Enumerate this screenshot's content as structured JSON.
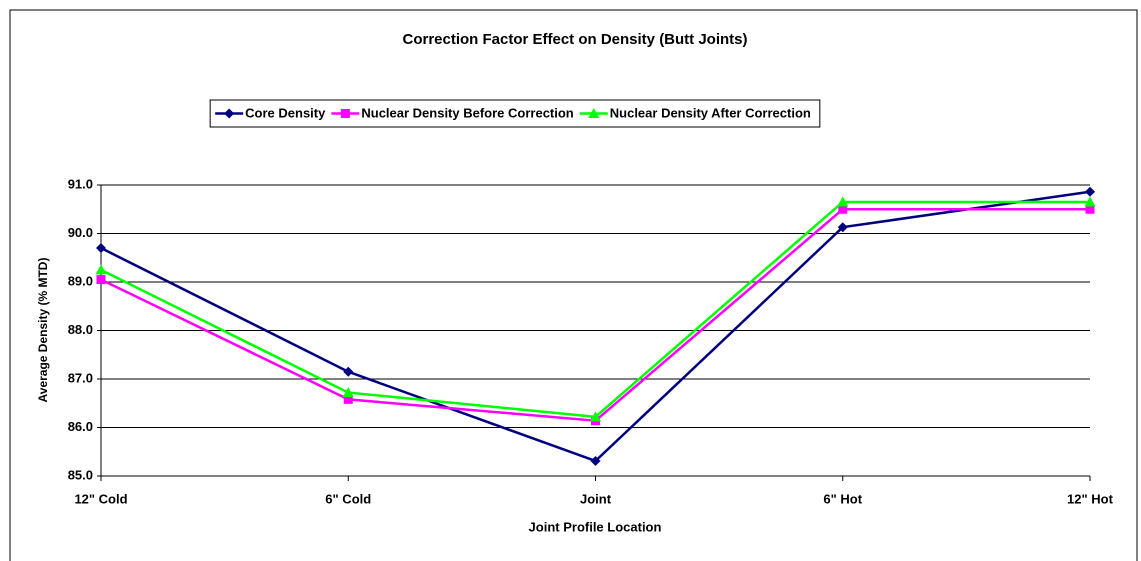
{
  "chart_data": {
    "type": "line",
    "title": "Correction Factor Effect on Density (Butt Joints)",
    "x_label": "Joint Profile Location",
    "y_label": "Average Density (% MTD)",
    "categories": [
      "12\" Cold",
      "6\" Cold",
      "Joint",
      "6\" Hot",
      "12\" Hot"
    ],
    "series": [
      {
        "name": "Core Density",
        "color": "#000080",
        "marker": "diamond",
        "values": [
          89.7,
          87.15,
          85.31,
          90.13,
          90.86
        ]
      },
      {
        "name": "Nuclear Density Before Correction",
        "color": "#ff00ff",
        "marker": "square",
        "values": [
          89.05,
          86.58,
          86.14,
          90.5,
          90.5
        ]
      },
      {
        "name": "Nuclear Density After Correction",
        "color": "#00ff00",
        "marker": "triangle",
        "values": [
          89.25,
          86.72,
          86.22,
          90.65,
          90.65
        ]
      }
    ],
    "ylim": [
      85,
      91
    ],
    "yticks": [
      {
        "value": 85,
        "label": "85.0"
      },
      {
        "value": 86,
        "label": "86.0"
      },
      {
        "value": 87,
        "label": "87.0"
      },
      {
        "value": 88,
        "label": "88.0"
      },
      {
        "value": 89,
        "label": "89.0"
      },
      {
        "value": 90,
        "label": "90.0"
      },
      {
        "value": 91,
        "label": "91.0"
      }
    ],
    "grid": true,
    "legend": "top"
  }
}
